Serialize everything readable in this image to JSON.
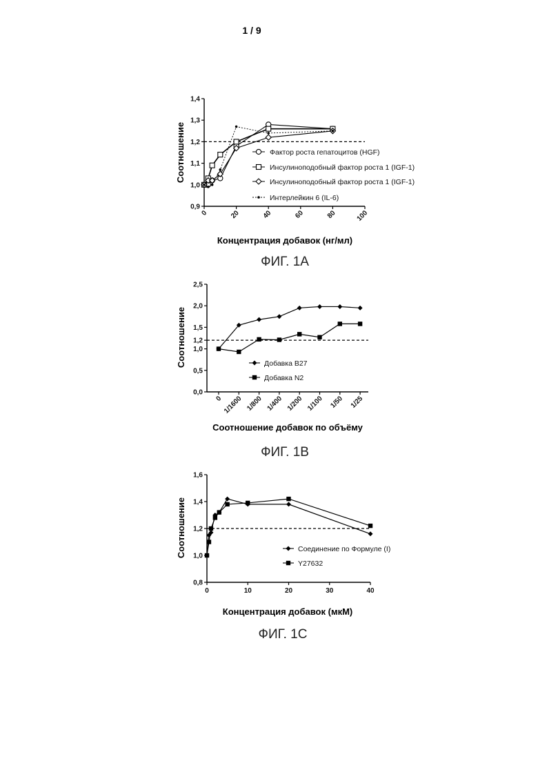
{
  "page": {
    "number": "1 / 9"
  },
  "chart_data": [
    {
      "type": "line",
      "caption": "ФИГ. 1А",
      "xlabel": "Концентрация добавок (нг/мл)",
      "ylabel": "Соотношение",
      "xlim": [
        0,
        100
      ],
      "ylim": [
        0.9,
        1.4
      ],
      "xticks": [
        0,
        20,
        40,
        60,
        80,
        100
      ],
      "yticks": [
        0.9,
        1.0,
        1.1,
        1.2,
        1.3,
        1.4
      ],
      "xtick_labels": [
        "0",
        "20",
        "40",
        "60",
        "80",
        "100"
      ],
      "ytick_labels": [
        "0,9",
        "1,0",
        "1,1",
        "1,2",
        "1,3",
        "1,4"
      ],
      "reference_line": 1.2,
      "legend_position": "center-right",
      "series": [
        {
          "name": "Фактор роста гепатоцитов (HGF)",
          "marker": "circle",
          "x": [
            0,
            2.5,
            5,
            10,
            20,
            40,
            80
          ],
          "y": [
            1.0,
            1.0,
            1.02,
            1.03,
            1.18,
            1.28,
            1.26
          ]
        },
        {
          "name": "Инсулиноподобный фактор роста 1 (IGF-1)",
          "marker": "square",
          "x": [
            0,
            2.5,
            5,
            10,
            20,
            40,
            80
          ],
          "y": [
            1.0,
            1.03,
            1.09,
            1.14,
            1.2,
            1.26,
            1.26
          ]
        },
        {
          "name": "Инсулиноподобный фактор роста 1 (IGF-1)",
          "marker": "diamond",
          "x": [
            0,
            2.5,
            5,
            10,
            20,
            40,
            80
          ],
          "y": [
            1.0,
            1.02,
            1.02,
            1.05,
            1.17,
            1.22,
            1.25
          ]
        },
        {
          "name": "Интерлейкин 6 (IL-6)",
          "marker": "small",
          "dashed": true,
          "x": [
            0,
            2.5,
            5,
            10,
            20,
            40,
            80
          ],
          "y": [
            1.0,
            0.99,
            1.0,
            1.07,
            1.27,
            1.24,
            1.25
          ]
        }
      ]
    },
    {
      "type": "line",
      "caption": "ФИГ. 1В",
      "xlabel": "Соотношение добавок по объёму",
      "ylabel": "Соотношение",
      "ylim": [
        0,
        2.5
      ],
      "categories": [
        "0",
        "1/1600",
        "1/800",
        "1/400",
        "1/200",
        "1/100",
        "1/50",
        "1/25"
      ],
      "yticks": [
        0,
        0.5,
        1.0,
        1.2,
        1.5,
        2.0,
        2.5
      ],
      "ytick_labels": [
        "0,0",
        "0,5",
        "1,0",
        "1,2",
        "1,5",
        "2,0",
        "2,5"
      ],
      "reference_line": 1.2,
      "legend_position": "lower-center",
      "series": [
        {
          "name": "Добавка B27",
          "marker": "diamond",
          "values": [
            1.0,
            1.55,
            1.68,
            1.75,
            1.95,
            1.98,
            1.98,
            1.95
          ]
        },
        {
          "name": "Добавка N2",
          "marker": "square",
          "values": [
            1.0,
            0.93,
            1.22,
            1.21,
            1.34,
            1.27,
            1.58,
            1.58
          ]
        }
      ]
    },
    {
      "type": "line",
      "caption": "ФИГ. 1С",
      "xlabel": "Концентрация добавок (мкМ)",
      "ylabel": "Соотношение",
      "xlim": [
        0,
        40
      ],
      "ylim": [
        0.8,
        1.6
      ],
      "xticks": [
        0,
        10,
        20,
        30,
        40
      ],
      "yticks": [
        0.8,
        1.0,
        1.2,
        1.4,
        1.6
      ],
      "xtick_labels": [
        "0",
        "10",
        "20",
        "30",
        "40"
      ],
      "ytick_labels": [
        "0,8",
        "1,0",
        "1,2",
        "1,4",
        "1,6"
      ],
      "reference_line": 1.2,
      "legend_position": "lower-right",
      "series": [
        {
          "name": "Соединение по Формуле (I)",
          "marker": "diamond",
          "x": [
            0,
            0.5,
            1,
            2,
            3,
            5,
            10,
            20,
            40
          ],
          "y": [
            1.0,
            1.15,
            1.17,
            1.3,
            1.32,
            1.42,
            1.38,
            1.38,
            1.16
          ]
        },
        {
          "name": "Y27632",
          "marker": "square",
          "x": [
            0,
            0.5,
            1,
            2,
            3,
            5,
            10,
            20,
            40
          ],
          "y": [
            1.0,
            1.1,
            1.2,
            1.28,
            1.32,
            1.38,
            1.39,
            1.42,
            1.22
          ]
        }
      ]
    }
  ]
}
